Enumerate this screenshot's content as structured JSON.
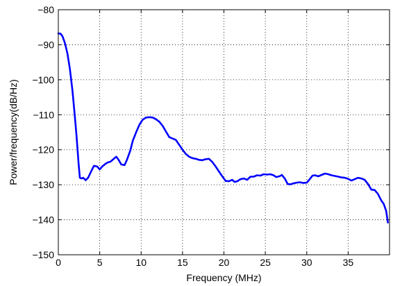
{
  "chart_data": {
    "type": "line",
    "title": "",
    "xlabel": "Frequency (MHz)",
    "ylabel": "Power/frequency(dB/Hz)",
    "xlim": [
      0,
      40
    ],
    "ylim": [
      -150,
      -80
    ],
    "xticks": [
      0,
      5,
      10,
      15,
      20,
      25,
      30,
      35
    ],
    "xtick_labels": [
      "0",
      "5",
      "10",
      "15",
      "20",
      "25",
      "30",
      "35"
    ],
    "yticks": [
      -150,
      -140,
      -130,
      -120,
      -110,
      -100,
      -90,
      -80
    ],
    "ytick_labels": [
      "−150",
      "−140",
      "−130",
      "−120",
      "−110",
      "−100",
      "−90",
      "−80"
    ],
    "grid": true,
    "grid_style": "dotted",
    "line_color": "#0000ff",
    "series": [
      {
        "x": [
          0,
          0.25,
          0.5,
          0.8,
          1.1,
          1.4,
          1.7,
          2.0,
          2.2,
          2.45,
          2.6,
          2.8,
          3.0,
          3.3,
          3.6,
          4.0,
          4.3,
          4.7,
          5.0,
          5.3,
          5.7,
          6.0,
          6.3,
          6.7,
          7.0,
          7.3,
          7.6,
          8.0,
          8.3,
          8.7,
          9.0,
          9.4,
          9.8,
          10.2,
          10.6,
          11.0,
          11.4,
          11.8,
          12.2,
          12.6,
          13.0,
          13.4,
          13.8,
          14.2,
          14.6,
          15.0,
          15.4,
          15.8,
          16.2,
          16.6,
          17.0,
          17.4,
          17.8,
          18.2,
          18.6,
          19.0,
          19.4,
          19.8,
          20.2,
          20.6,
          21.0,
          21.3,
          21.6,
          22.0,
          22.4,
          22.8,
          23.2,
          23.6,
          24.0,
          24.4,
          24.8,
          25.2,
          25.6,
          26.0,
          26.3,
          26.7,
          27.0,
          27.4,
          27.7,
          28.0,
          28.4,
          28.8,
          29.2,
          29.6,
          30.0,
          30.3,
          30.7,
          31.0,
          31.4,
          31.8,
          32.2,
          32.6,
          33.0,
          33.4,
          33.8,
          34.2,
          34.6,
          35.0,
          35.4,
          35.8,
          36.2,
          36.6,
          37.0,
          37.4,
          37.8,
          38.2,
          38.6,
          39.0,
          39.3,
          39.6,
          39.8
        ],
        "y": [
          -86.8,
          -86.8,
          -87.6,
          -89.5,
          -92.5,
          -97.0,
          -103.0,
          -110.5,
          -116.0,
          -124.0,
          -128.0,
          -128.2,
          -128.0,
          -128.7,
          -128.0,
          -126.0,
          -124.6,
          -124.8,
          -125.6,
          -124.8,
          -124.0,
          -123.6,
          -123.4,
          -122.6,
          -122.0,
          -123.0,
          -124.2,
          -124.4,
          -122.8,
          -120.2,
          -117.4,
          -115.0,
          -112.8,
          -111.4,
          -110.8,
          -110.7,
          -110.8,
          -111.3,
          -112.0,
          -113.2,
          -114.8,
          -116.4,
          -116.8,
          -117.2,
          -118.6,
          -120.0,
          -121.2,
          -122.0,
          -122.4,
          -122.6,
          -122.9,
          -123.0,
          -122.7,
          -122.6,
          -123.5,
          -124.8,
          -126.2,
          -127.6,
          -128.9,
          -129.0,
          -128.6,
          -129.2,
          -129.0,
          -128.4,
          -128.2,
          -128.6,
          -127.7,
          -127.7,
          -127.3,
          -127.4,
          -127.0,
          -127.1,
          -127.0,
          -127.3,
          -127.8,
          -127.6,
          -127.2,
          -128.4,
          -129.8,
          -129.9,
          -129.6,
          -129.4,
          -129.3,
          -129.5,
          -129.4,
          -128.6,
          -127.4,
          -127.3,
          -127.6,
          -127.2,
          -126.8,
          -127.0,
          -127.3,
          -127.5,
          -127.7,
          -127.9,
          -128.0,
          -128.3,
          -128.8,
          -128.4,
          -128.0,
          -128.2,
          -128.6,
          -129.8,
          -131.4,
          -131.5,
          -132.6,
          -134.5,
          -135.5,
          -137.5,
          -140.8
        ]
      }
    ]
  }
}
